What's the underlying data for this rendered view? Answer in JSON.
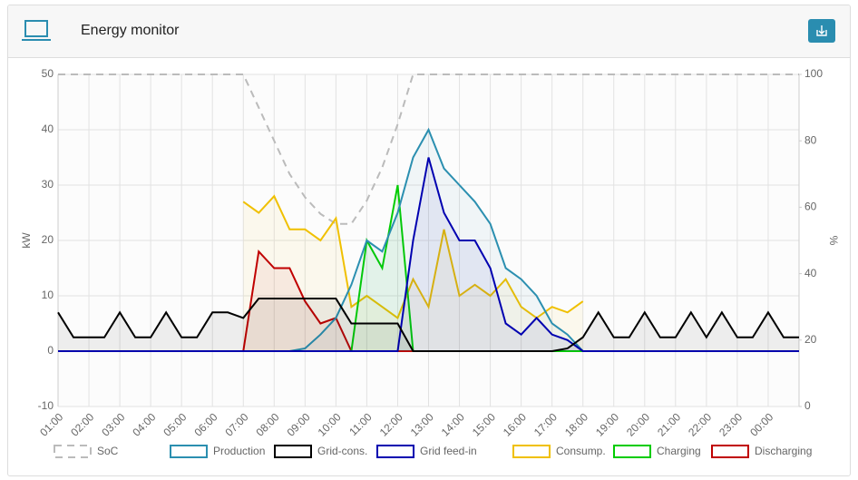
{
  "header": {
    "title": "Energy monitor"
  },
  "chart_data": {
    "type": "line",
    "ylabel": "kW",
    "y2label": "%",
    "x": [
      1,
      1.5,
      2,
      2.5,
      3,
      3.5,
      4,
      4.5,
      5,
      5.5,
      6,
      6.5,
      7,
      7.5,
      8,
      8.5,
      9,
      9.5,
      10,
      10.5,
      11,
      11.5,
      12,
      12.5,
      13,
      13.5,
      14,
      14.5,
      15,
      15.5,
      16,
      16.5,
      17,
      17.5,
      18,
      18.5,
      19,
      19.5,
      20,
      20.5,
      21,
      21.5,
      22,
      22.5,
      23,
      23.5,
      24,
      24.5,
      25
    ],
    "xlim": [
      1,
      25
    ],
    "xticks": [
      {
        "value": 1,
        "label": "01:00"
      },
      {
        "value": 2,
        "label": "02:00"
      },
      {
        "value": 3,
        "label": "03:00"
      },
      {
        "value": 4,
        "label": "04:00"
      },
      {
        "value": 5,
        "label": "05:00"
      },
      {
        "value": 6,
        "label": "06:00"
      },
      {
        "value": 7,
        "label": "07:00"
      },
      {
        "value": 8,
        "label": "08:00"
      },
      {
        "value": 9,
        "label": "09:00"
      },
      {
        "value": 10,
        "label": "10:00"
      },
      {
        "value": 11,
        "label": "11:00"
      },
      {
        "value": 12,
        "label": "12:00"
      },
      {
        "value": 13,
        "label": "13:00"
      },
      {
        "value": 14,
        "label": "14:00"
      },
      {
        "value": 15,
        "label": "15:00"
      },
      {
        "value": 16,
        "label": "16:00"
      },
      {
        "value": 17,
        "label": "17:00"
      },
      {
        "value": 18,
        "label": "18:00"
      },
      {
        "value": 19,
        "label": "19:00"
      },
      {
        "value": 20,
        "label": "20:00"
      },
      {
        "value": 21,
        "label": "21:00"
      },
      {
        "value": 22,
        "label": "22:00"
      },
      {
        "value": 23,
        "label": "23:00"
      },
      {
        "value": 24,
        "label": "00:00"
      }
    ],
    "ylim": [
      -10,
      50
    ],
    "yticks": [
      -10,
      0,
      10,
      20,
      30,
      40,
      50
    ],
    "y2lim": [
      0,
      100
    ],
    "y2ticks": [
      0,
      20,
      40,
      60,
      80,
      100
    ],
    "grid": true,
    "series": [
      {
        "name": "SoC",
        "color": "#bbbbbb",
        "axis": "y2",
        "dashed": true,
        "values": [
          100,
          100,
          100,
          100,
          100,
          100,
          100,
          100,
          100,
          100,
          100,
          100,
          100,
          90,
          80,
          70,
          63,
          58,
          55,
          55,
          62,
          72,
          85,
          100,
          100,
          100,
          100,
          100,
          100,
          100,
          100,
          100,
          100,
          100,
          100,
          100,
          100,
          100,
          100,
          100,
          100,
          100,
          100,
          100,
          100,
          100,
          100,
          100,
          100
        ]
      },
      {
        "name": "Production",
        "color": "#2b8fb0",
        "values": [
          0,
          0,
          0,
          0,
          0,
          0,
          0,
          0,
          0,
          0,
          0,
          0,
          0,
          0,
          0,
          0,
          0.5,
          3,
          6,
          12,
          20,
          18,
          25,
          35,
          40,
          33,
          30,
          27,
          23,
          15,
          13,
          10,
          5,
          3,
          0,
          0,
          0,
          0,
          0,
          0,
          0,
          0,
          0,
          0,
          0,
          0,
          0,
          0,
          0
        ]
      },
      {
        "name": "Grid-cons.",
        "color": "#000000",
        "values": [
          7,
          2.5,
          2.5,
          2.5,
          7,
          2.5,
          2.5,
          7,
          2.5,
          2.5,
          7,
          7,
          6,
          9.5,
          9.5,
          9.5,
          9.5,
          9.5,
          9.5,
          5,
          5,
          5,
          5,
          0,
          0,
          0,
          0,
          0,
          0,
          0,
          0,
          0,
          0,
          0.5,
          2.5,
          7,
          2.5,
          2.5,
          7,
          2.5,
          2.5,
          7,
          2.5,
          7,
          2.5,
          2.5,
          7,
          2.5,
          2.5
        ]
      },
      {
        "name": "Grid feed-in",
        "color": "#0000b0",
        "values": [
          0,
          0,
          0,
          0,
          0,
          0,
          0,
          0,
          0,
          0,
          0,
          0,
          0,
          0,
          0,
          0,
          0,
          0,
          0,
          0,
          0,
          0,
          0,
          20,
          35,
          25,
          20,
          20,
          15,
          5,
          3,
          6,
          3,
          2,
          0,
          0,
          0,
          0,
          0,
          0,
          0,
          0,
          0,
          0,
          0,
          0,
          0,
          0,
          0
        ]
      },
      {
        "name": "Consump.",
        "color": "#f0c000",
        "values": [
          null,
          null,
          null,
          null,
          null,
          null,
          null,
          null,
          null,
          null,
          null,
          null,
          27,
          25,
          28,
          22,
          22,
          20,
          24,
          8,
          10,
          8,
          6,
          13,
          8,
          22,
          10,
          12,
          10,
          13,
          8,
          6,
          8,
          7,
          9,
          null,
          null,
          null,
          null,
          null,
          null,
          null,
          null,
          null,
          null,
          null,
          null,
          null,
          null
        ]
      },
      {
        "name": "Charging",
        "color": "#00cc00",
        "values": [
          0,
          0,
          0,
          0,
          0,
          0,
          0,
          0,
          0,
          0,
          0,
          0,
          0,
          0,
          0,
          0,
          0,
          0,
          0,
          0,
          20,
          15,
          30,
          0,
          0,
          0,
          0,
          0,
          0,
          0,
          0,
          0,
          0,
          0,
          0,
          0,
          0,
          0,
          0,
          0,
          0,
          0,
          0,
          0,
          0,
          0,
          0,
          0,
          0
        ]
      },
      {
        "name": "Discharging",
        "color": "#c00000",
        "values": [
          0,
          0,
          0,
          0,
          0,
          0,
          0,
          0,
          0,
          0,
          0,
          0,
          0,
          18,
          15,
          15,
          9,
          5,
          6,
          0,
          0,
          0,
          0,
          0,
          0,
          0,
          0,
          0,
          0,
          0,
          0,
          0,
          0,
          0,
          0,
          0,
          0,
          0,
          0,
          0,
          0,
          0,
          0,
          0,
          0,
          0,
          0,
          0,
          0
        ]
      }
    ]
  }
}
